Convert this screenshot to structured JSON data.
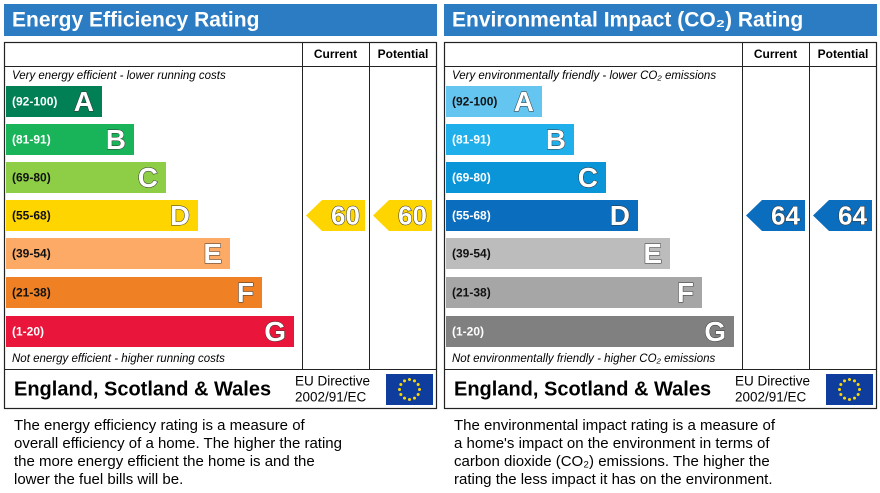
{
  "panels": [
    {
      "title": "Energy Efficiency Rating",
      "columns": [
        "Current",
        "Potential"
      ],
      "top_note": "Very energy efficient - lower running costs",
      "bottom_note": "Not energy efficient - higher running costs",
      "bands": [
        {
          "range": "(92-100)",
          "letter": "A",
          "color": "#008054"
        },
        {
          "range": "(81-91)",
          "letter": "B",
          "color": "#19b459"
        },
        {
          "range": "(69-80)",
          "letter": "C",
          "color": "#8dce46"
        },
        {
          "range": "(55-68)",
          "letter": "D",
          "color": "#ffd500"
        },
        {
          "range": "(39-54)",
          "letter": "E",
          "color": "#fcaa65"
        },
        {
          "range": "(21-38)",
          "letter": "F",
          "color": "#ef8023"
        },
        {
          "range": "(1-20)",
          "letter": "G",
          "color": "#e9153b"
        }
      ],
      "current": 60,
      "potential": 60,
      "region": "England, Scotland & Wales",
      "directive": [
        "EU Directive",
        "2002/91/EC"
      ],
      "description": [
        "The energy efficiency rating is a measure of",
        "overall efficiency of a home. The higher the rating",
        "the more energy efficient the home is and the",
        "lower the fuel bills will be."
      ]
    },
    {
      "title": "Environmental Impact (CO₂) Rating",
      "columns": [
        "Current",
        "Potential"
      ],
      "top_note": "Very environmentally friendly - lower CO₂ emissions",
      "bottom_note": "Not environmentally friendly - higher CO₂ emissions",
      "bands": [
        {
          "range": "(92-100)",
          "letter": "A",
          "color": "#63c5f0"
        },
        {
          "range": "(81-91)",
          "letter": "B",
          "color": "#1fb0ec"
        },
        {
          "range": "(69-80)",
          "letter": "C",
          "color": "#0a95d8"
        },
        {
          "range": "(55-68)",
          "letter": "D",
          "color": "#0a6dbd"
        },
        {
          "range": "(39-54)",
          "letter": "E",
          "color": "#bcbcbc"
        },
        {
          "range": "(21-38)",
          "letter": "F",
          "color": "#a6a6a6"
        },
        {
          "range": "(1-20)",
          "letter": "G",
          "color": "#808080"
        }
      ],
      "current": 64,
      "potential": 64,
      "region": "England, Scotland & Wales",
      "directive": [
        "EU Directive",
        "2002/91/EC"
      ],
      "description": [
        "The environmental impact rating is a measure of",
        "a home's impact on the environment in terms of",
        "carbon dioxide (CO₂) emissions. The higher the",
        "rating the less impact it has on the environment."
      ]
    }
  ]
}
